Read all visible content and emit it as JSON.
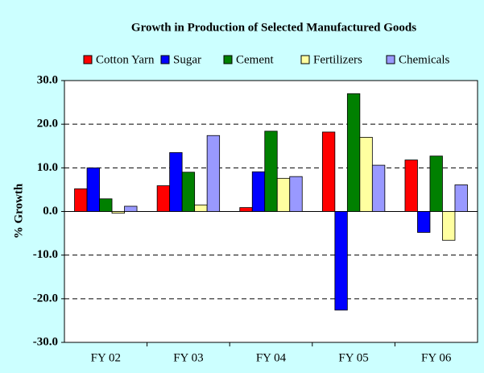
{
  "chart_data": {
    "type": "bar",
    "title": "Growth in Production of Selected Manufactured Goods",
    "y_label": "% Growth",
    "categories": [
      "FY 02",
      "FY 03",
      "FY 04",
      "FY 05",
      "FY 06"
    ],
    "series": [
      {
        "name": "Cotton Yarn",
        "color": "#ff0000",
        "values": [
          5.2,
          5.9,
          0.9,
          18.2,
          11.8
        ]
      },
      {
        "name": "Sugar",
        "color": "#0000ff",
        "values": [
          10.0,
          13.5,
          9.1,
          -22.6,
          -4.8
        ]
      },
      {
        "name": "Cement",
        "color": "#008000",
        "values": [
          2.9,
          9.0,
          18.4,
          27.0,
          12.7
        ]
      },
      {
        "name": "Fertilizers",
        "color": "#ffffa0",
        "values": [
          -0.4,
          1.5,
          7.6,
          17.0,
          -6.6
        ]
      },
      {
        "name": "Chemicals",
        "color": "#9999ff",
        "values": [
          1.2,
          17.4,
          8.0,
          10.6,
          6.1
        ]
      }
    ],
    "ylim": [
      -30,
      30
    ],
    "yticks": [
      {
        "value": -30,
        "label": "-30.0"
      },
      {
        "value": -20,
        "label": "-20.0"
      },
      {
        "value": -10,
        "label": "-10.0"
      },
      {
        "value": 0,
        "label": "0.0"
      },
      {
        "value": 10,
        "label": "10.0"
      },
      {
        "value": 20,
        "label": "20.0"
      },
      {
        "value": 30,
        "label": "30.0"
      }
    ],
    "grid": true,
    "legend": "top"
  }
}
